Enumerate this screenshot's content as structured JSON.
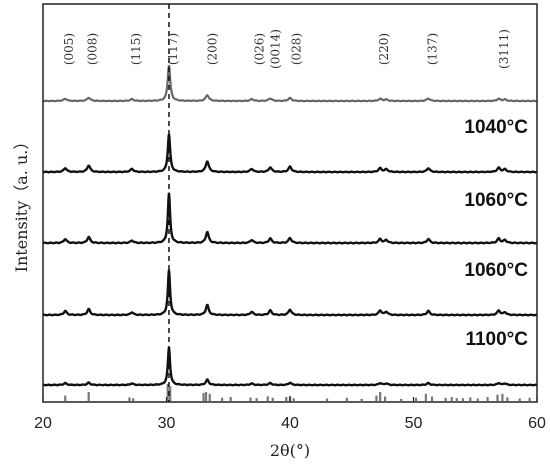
{
  "chart_data": {
    "type": "line",
    "xlabel": "2θ(°)",
    "ylabel": "Intensity（a. u.）",
    "xlim": [
      20,
      60
    ],
    "x_ticks": [
      "20",
      "30",
      "40",
      "50",
      "60"
    ],
    "reference_line_x": 30.2,
    "peak_labels": [
      {
        "label": "(005)",
        "x": 21.8
      },
      {
        "label": "(008)",
        "x": 23.7
      },
      {
        "label": "(115)",
        "x": 27.2
      },
      {
        "label": "(117)",
        "x": 30.2
      },
      {
        "label": "(200)",
        "x": 33.4
      },
      {
        "label": "(026)",
        "x": 37.2
      },
      {
        "label": "(0014)",
        "x": 38.5
      },
      {
        "label": "(028)",
        "x": 40.2
      },
      {
        "label": "(220)",
        "x": 47.3
      },
      {
        "label": "(137)",
        "x": 51.2
      },
      {
        "label": "(3111)",
        "x": 57.0
      }
    ],
    "series": [
      {
        "label": "",
        "color": "#666666",
        "peaks": [
          [
            21.8,
            0.06
          ],
          [
            23.7,
            0.09
          ],
          [
            27.2,
            0.05
          ],
          [
            30.2,
            1.0
          ],
          [
            33.3,
            0.16
          ],
          [
            36.9,
            0.05
          ],
          [
            38.4,
            0.07
          ],
          [
            40.0,
            0.08
          ],
          [
            47.3,
            0.06
          ],
          [
            47.8,
            0.04
          ],
          [
            51.2,
            0.07
          ],
          [
            56.9,
            0.06
          ],
          [
            57.4,
            0.04
          ]
        ]
      },
      {
        "label": "1040°C",
        "color": "#111111",
        "peaks": [
          [
            21.8,
            0.1
          ],
          [
            23.7,
            0.17
          ],
          [
            27.2,
            0.08
          ],
          [
            30.2,
            1.0
          ],
          [
            33.3,
            0.28
          ],
          [
            36.9,
            0.08
          ],
          [
            38.4,
            0.12
          ],
          [
            40.0,
            0.14
          ],
          [
            47.3,
            0.1
          ],
          [
            47.8,
            0.07
          ],
          [
            51.2,
            0.1
          ],
          [
            56.9,
            0.11
          ],
          [
            57.4,
            0.07
          ]
        ]
      },
      {
        "label": "1060°C",
        "color": "#111111",
        "peaks": [
          [
            21.8,
            0.08
          ],
          [
            23.7,
            0.12
          ],
          [
            27.2,
            0.05
          ],
          [
            30.2,
            1.0
          ],
          [
            33.3,
            0.22
          ],
          [
            36.9,
            0.06
          ],
          [
            38.4,
            0.09
          ],
          [
            40.0,
            0.1
          ],
          [
            47.3,
            0.08
          ],
          [
            47.8,
            0.06
          ],
          [
            51.2,
            0.08
          ],
          [
            56.9,
            0.09
          ],
          [
            57.4,
            0.06
          ]
        ]
      },
      {
        "label": "1060°C",
        "color": "#111111",
        "peaks": [
          [
            21.8,
            0.09
          ],
          [
            23.7,
            0.13
          ],
          [
            27.2,
            0.06
          ],
          [
            30.2,
            1.0
          ],
          [
            33.3,
            0.22
          ],
          [
            36.9,
            0.07
          ],
          [
            38.4,
            0.1
          ],
          [
            40.0,
            0.12
          ],
          [
            47.3,
            0.1
          ],
          [
            47.8,
            0.07
          ],
          [
            51.2,
            0.09
          ],
          [
            56.9,
            0.1
          ],
          [
            57.4,
            0.06
          ]
        ]
      },
      {
        "label": "1100°C",
        "color": "#111111",
        "peaks": [
          [
            21.8,
            0.05
          ],
          [
            23.7,
            0.06
          ],
          [
            27.2,
            0.04
          ],
          [
            30.2,
            1.0
          ],
          [
            33.3,
            0.14
          ],
          [
            36.9,
            0.04
          ],
          [
            38.4,
            0.05
          ],
          [
            40.0,
            0.06
          ],
          [
            47.3,
            0.05
          ],
          [
            47.8,
            0.04
          ],
          [
            51.2,
            0.05
          ],
          [
            56.9,
            0.05
          ],
          [
            57.4,
            0.04
          ]
        ]
      }
    ],
    "reference_pattern": {
      "color": "#777777",
      "sticks": [
        [
          21.8,
          0.3
        ],
        [
          23.7,
          0.5
        ],
        [
          27.0,
          0.2
        ],
        [
          27.3,
          0.15
        ],
        [
          30.1,
          0.95
        ],
        [
          30.3,
          0.8
        ],
        [
          33.0,
          0.45
        ],
        [
          33.2,
          0.5
        ],
        [
          33.5,
          0.4
        ],
        [
          34.5,
          0.18
        ],
        [
          35.2,
          0.22
        ],
        [
          36.8,
          0.2
        ],
        [
          37.3,
          0.16
        ],
        [
          38.2,
          0.26
        ],
        [
          38.6,
          0.18
        ],
        [
          39.7,
          0.22
        ],
        [
          40.0,
          0.28
        ],
        [
          40.3,
          0.15
        ],
        [
          43.0,
          0.14
        ],
        [
          44.6,
          0.18
        ],
        [
          45.8,
          0.12
        ],
        [
          47.0,
          0.3
        ],
        [
          47.3,
          0.5
        ],
        [
          47.7,
          0.25
        ],
        [
          49.0,
          0.12
        ],
        [
          50.2,
          0.18
        ],
        [
          51.0,
          0.4
        ],
        [
          51.5,
          0.25
        ],
        [
          52.6,
          0.18
        ],
        [
          53.1,
          0.22
        ],
        [
          53.5,
          0.16
        ],
        [
          54.0,
          0.15
        ],
        [
          54.6,
          0.2
        ],
        [
          55.2,
          0.14
        ],
        [
          56.0,
          0.22
        ],
        [
          56.8,
          0.35
        ],
        [
          57.2,
          0.4
        ],
        [
          57.6,
          0.2
        ],
        [
          58.6,
          0.14
        ],
        [
          59.4,
          0.18
        ]
      ]
    }
  }
}
